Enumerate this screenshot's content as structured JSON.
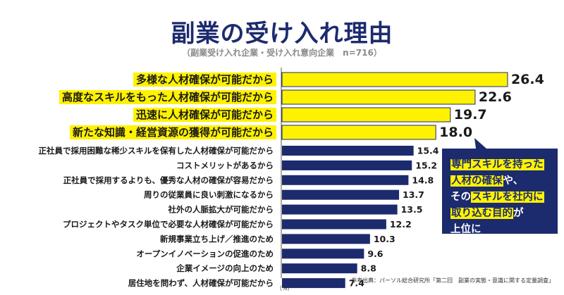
{
  "header": {
    "title": "副業の受け入れ理由",
    "subtitle": "（副業受け入れ企業・受け入れ意向企業　n=716）"
  },
  "colors": {
    "highlight_bar": "#fff200",
    "normal_bar": "#1c2b6e",
    "title": "#1c2b6e",
    "label_highlight": "#fff200"
  },
  "chart_data": {
    "type": "bar",
    "orientation": "horizontal",
    "title": "副業の受け入れ理由",
    "subtitle": "（副業受け入れ企業・受け入れ意向企業　n=716）",
    "unit_label": "（%）",
    "highlighted_count": 4,
    "categories": [
      "多様な人材確保が可能だから",
      "高度なスキルをもった人材確保が可能だから",
      "迅速に人材確保が可能だから",
      "新たな知識・経営資源の獲得が可能だから",
      "正社員で採用困難な稀少スキルを保有した人材確保が可能だから",
      "コストメリットがあるから",
      "正社員で採用するよりも、優秀な人材の確保が容易だから",
      "周りの従業員に良い刺激になるから",
      "社外の人脈拡大が可能だから",
      "プロジェクトやタスク単位で必要な人材確保が可能だから",
      "新規事業立ち上げ／推進のため",
      "オープンイノベーションの促進のため",
      "企業イメージの向上のため",
      "居住地を問わず、人材確保が可能だから"
    ],
    "values": [
      26.4,
      22.6,
      19.7,
      18.0,
      15.4,
      15.2,
      14.8,
      13.7,
      13.5,
      12.2,
      10.3,
      9.6,
      8.8,
      7.4
    ],
    "value_labels": [
      "26.4",
      "22.6",
      "19.7",
      "18.0",
      "15.4",
      "15.2",
      "14.8",
      "13.7",
      "13.5",
      "12.2",
      "10.3",
      "9.6",
      "8.8",
      "7.4"
    ]
  },
  "callout": {
    "hl1": "専門スキルを持った",
    "hl2": "人材の確保",
    "t1": "や、",
    "t2": "その",
    "hl3": "スキルを社内に",
    "hl4": "取り込む目的",
    "t3": "が",
    "t4": "上位に"
  },
  "footer": {
    "source": "参考出典：パーソル総合研究所「第二回　副業の実態・意識に関する定量調査」",
    "unit": "（%）"
  }
}
